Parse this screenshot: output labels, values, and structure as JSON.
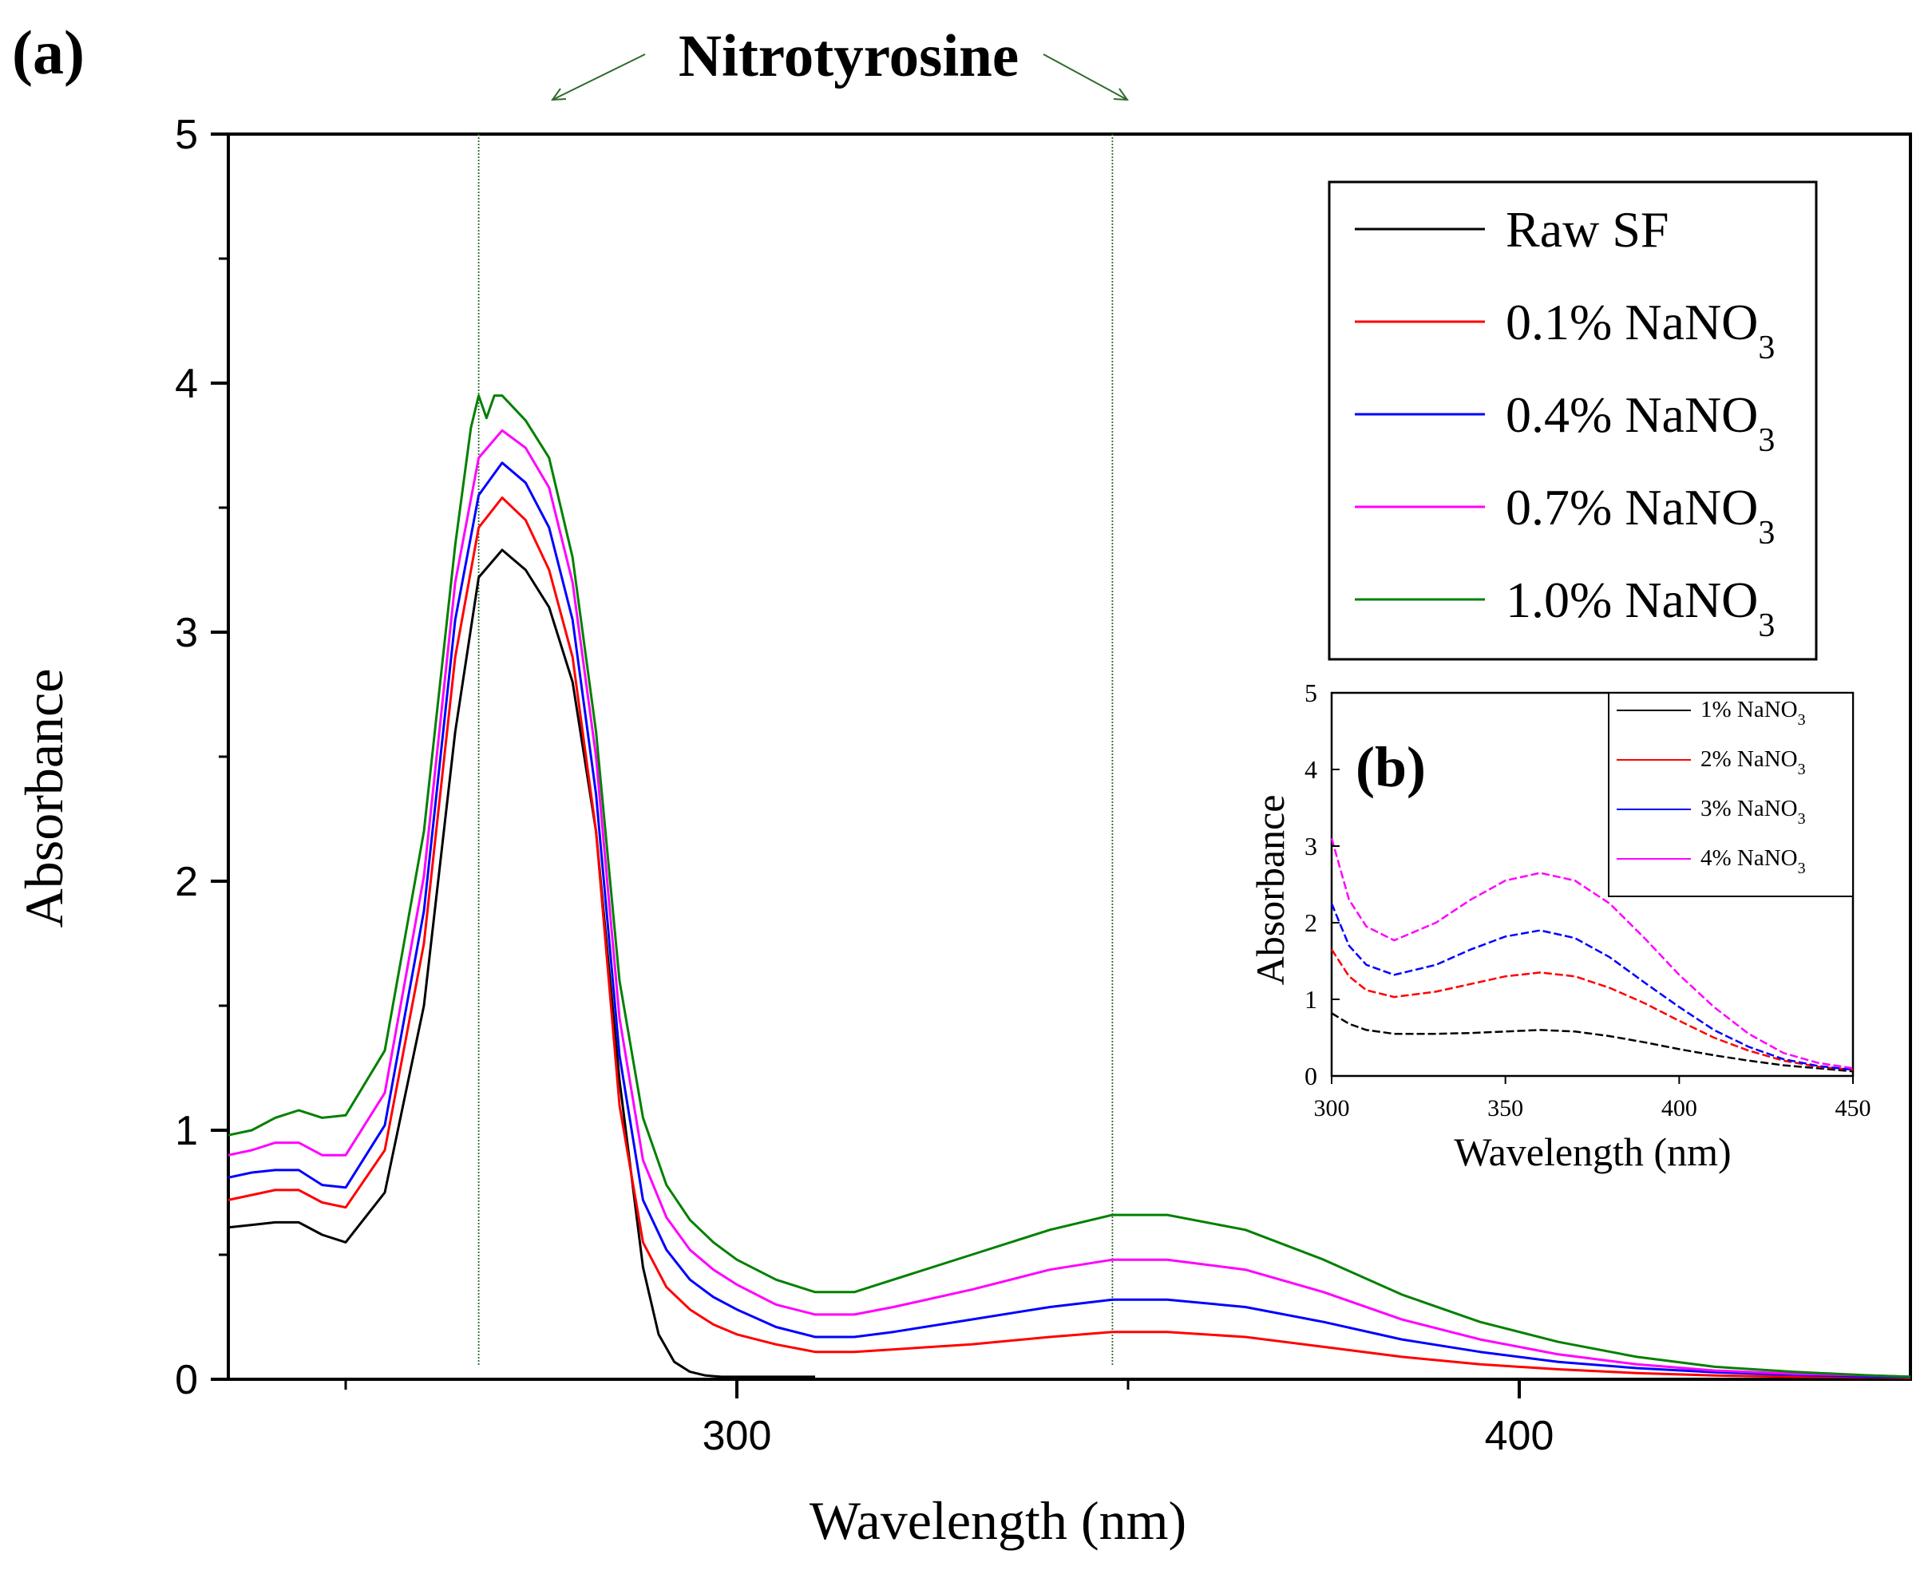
{
  "chart_data": [
    {
      "id": "a",
      "panel_label": "(a)",
      "type": "line",
      "annotation": "Nitrotyrosine",
      "reference_lines_x": [
        267,
        348
      ],
      "xlabel": "Wavelength (nm)",
      "ylabel": "Absorbance",
      "xlim": [
        235,
        450
      ],
      "ylim": [
        0,
        5
      ],
      "x_major_ticks": [
        300,
        400
      ],
      "x_minor_ticks": [
        250,
        350
      ],
      "y_major_ticks": [
        0,
        1,
        2,
        3,
        4,
        5
      ],
      "legend_position": "top-right",
      "series": [
        {
          "name": "Raw SF",
          "label_main": "Raw SF",
          "label_sub": "",
          "color": "#000000",
          "x": [
            235,
            238,
            241,
            244,
            247,
            250,
            255,
            260,
            264,
            267,
            270,
            273,
            276,
            279,
            282,
            285,
            288,
            290,
            292,
            294,
            296,
            298,
            300,
            305,
            310
          ],
          "y": [
            0.61,
            0.62,
            0.63,
            0.63,
            0.58,
            0.55,
            0.75,
            1.5,
            2.6,
            3.22,
            3.33,
            3.25,
            3.1,
            2.8,
            2.2,
            1.2,
            0.45,
            0.18,
            0.07,
            0.03,
            0.015,
            0.01,
            0.01,
            0.01,
            0.01
          ]
        },
        {
          "name": "0.1% NaNO3",
          "label_main": "0.1% NaNO",
          "label_sub": "3",
          "color": "#ff0000",
          "x": [
            235,
            238,
            241,
            244,
            247,
            250,
            255,
            260,
            264,
            267,
            270,
            273,
            276,
            279,
            282,
            285,
            288,
            291,
            294,
            297,
            300,
            305,
            310,
            315,
            320,
            330,
            340,
            348,
            355,
            365,
            375,
            385,
            395,
            405,
            415,
            425,
            435,
            445,
            450
          ],
          "y": [
            0.72,
            0.74,
            0.76,
            0.76,
            0.71,
            0.69,
            0.92,
            1.75,
            2.9,
            3.42,
            3.54,
            3.45,
            3.25,
            2.9,
            2.2,
            1.1,
            0.55,
            0.37,
            0.28,
            0.22,
            0.18,
            0.14,
            0.11,
            0.11,
            0.12,
            0.14,
            0.17,
            0.19,
            0.19,
            0.17,
            0.13,
            0.09,
            0.06,
            0.04,
            0.025,
            0.015,
            0.01,
            0.008,
            0.005
          ]
        },
        {
          "name": "0.4% NaNO3",
          "label_main": "0.4% NaNO",
          "label_sub": "3",
          "color": "#0000ff",
          "x": [
            235,
            238,
            241,
            244,
            247,
            250,
            255,
            260,
            264,
            267,
            270,
            273,
            276,
            279,
            282,
            285,
            288,
            291,
            294,
            297,
            300,
            305,
            310,
            315,
            320,
            330,
            340,
            348,
            355,
            365,
            375,
            385,
            395,
            405,
            415,
            425,
            435,
            445,
            450
          ],
          "y": [
            0.81,
            0.83,
            0.84,
            0.84,
            0.78,
            0.77,
            1.02,
            1.88,
            3.05,
            3.55,
            3.68,
            3.6,
            3.42,
            3.05,
            2.35,
            1.3,
            0.72,
            0.52,
            0.4,
            0.33,
            0.28,
            0.21,
            0.17,
            0.17,
            0.19,
            0.24,
            0.29,
            0.32,
            0.32,
            0.29,
            0.23,
            0.16,
            0.11,
            0.07,
            0.045,
            0.028,
            0.018,
            0.01,
            0.008
          ]
        },
        {
          "name": "0.7% NaNO3",
          "label_main": "0.7% NaNO",
          "label_sub": "3",
          "color": "#ff00ff",
          "x": [
            235,
            238,
            241,
            244,
            247,
            250,
            255,
            260,
            264,
            267,
            270,
            273,
            276,
            279,
            282,
            285,
            288,
            291,
            294,
            297,
            300,
            305,
            310,
            315,
            320,
            330,
            340,
            348,
            355,
            365,
            375,
            385,
            395,
            405,
            415,
            425,
            435,
            445,
            450
          ],
          "y": [
            0.9,
            0.92,
            0.95,
            0.95,
            0.9,
            0.9,
            1.15,
            2.02,
            3.2,
            3.7,
            3.81,
            3.74,
            3.58,
            3.2,
            2.5,
            1.45,
            0.88,
            0.65,
            0.52,
            0.44,
            0.38,
            0.3,
            0.26,
            0.26,
            0.29,
            0.36,
            0.44,
            0.48,
            0.48,
            0.44,
            0.35,
            0.24,
            0.16,
            0.1,
            0.06,
            0.035,
            0.022,
            0.015,
            0.01
          ]
        },
        {
          "name": "1.0% NaNO3",
          "label_main": "1.0% NaNO",
          "label_sub": "3",
          "color": "#008000",
          "x": [
            235,
            238,
            241,
            244,
            247,
            250,
            255,
            260,
            264,
            266,
            267,
            268,
            269,
            270,
            273,
            276,
            279,
            282,
            285,
            288,
            291,
            294,
            297,
            300,
            305,
            310,
            315,
            320,
            330,
            340,
            348,
            355,
            365,
            375,
            385,
            395,
            405,
            415,
            425,
            435,
            445,
            450
          ],
          "y": [
            0.98,
            1.0,
            1.05,
            1.08,
            1.05,
            1.06,
            1.32,
            2.2,
            3.35,
            3.82,
            3.95,
            3.86,
            3.95,
            3.95,
            3.85,
            3.7,
            3.3,
            2.6,
            1.6,
            1.05,
            0.78,
            0.64,
            0.55,
            0.48,
            0.4,
            0.35,
            0.35,
            0.4,
            0.5,
            0.6,
            0.66,
            0.66,
            0.6,
            0.48,
            0.34,
            0.23,
            0.15,
            0.09,
            0.05,
            0.03,
            0.015,
            0.01
          ]
        }
      ]
    },
    {
      "id": "b",
      "panel_label": "(b)",
      "type": "line",
      "xlabel": "Wavelength (nm)",
      "ylabel": "Absorbance",
      "xlim": [
        300,
        450
      ],
      "ylim": [
        0,
        5
      ],
      "x_major_ticks": [
        300,
        350,
        400,
        450
      ],
      "y_major_ticks": [
        0,
        1,
        2,
        3,
        4,
        5
      ],
      "legend_position": "top-right",
      "series": [
        {
          "name": "1% NaNO3",
          "label_main": "1% NaNO",
          "label_sub": "3",
          "color": "#000000",
          "dash": "dashed",
          "x": [
            300,
            305,
            310,
            318,
            330,
            340,
            350,
            360,
            370,
            380,
            390,
            400,
            410,
            420,
            430,
            440,
            450
          ],
          "y": [
            0.82,
            0.68,
            0.6,
            0.55,
            0.55,
            0.56,
            0.58,
            0.6,
            0.58,
            0.52,
            0.44,
            0.35,
            0.27,
            0.2,
            0.14,
            0.1,
            0.06
          ]
        },
        {
          "name": "2% NaNO3",
          "label_main": "2% NaNO",
          "label_sub": "3",
          "color": "#ff0000",
          "dash": "dashed",
          "x": [
            300,
            305,
            310,
            318,
            330,
            340,
            350,
            360,
            370,
            380,
            390,
            400,
            410,
            420,
            430,
            440,
            450
          ],
          "y": [
            1.65,
            1.3,
            1.12,
            1.03,
            1.1,
            1.2,
            1.3,
            1.35,
            1.3,
            1.15,
            0.95,
            0.72,
            0.5,
            0.33,
            0.2,
            0.12,
            0.08
          ]
        },
        {
          "name": "3% NaNO3",
          "label_main": "3% NaNO",
          "label_sub": "3",
          "color": "#0000ff",
          "dash": "dashed",
          "x": [
            300,
            305,
            310,
            318,
            330,
            340,
            350,
            360,
            370,
            380,
            390,
            400,
            410,
            420,
            430,
            440,
            450
          ],
          "y": [
            2.25,
            1.7,
            1.45,
            1.32,
            1.45,
            1.65,
            1.82,
            1.9,
            1.8,
            1.55,
            1.22,
            0.9,
            0.6,
            0.38,
            0.22,
            0.13,
            0.08
          ]
        },
        {
          "name": "4% NaNO3",
          "label_main": "4% NaNO",
          "label_sub": "3",
          "color": "#ff00ff",
          "dash": "dashed",
          "x": [
            300,
            305,
            310,
            318,
            330,
            340,
            350,
            360,
            370,
            380,
            390,
            400,
            410,
            420,
            430,
            440,
            450
          ],
          "y": [
            3.1,
            2.3,
            1.95,
            1.77,
            2.0,
            2.3,
            2.55,
            2.65,
            2.55,
            2.25,
            1.8,
            1.32,
            0.9,
            0.55,
            0.3,
            0.17,
            0.1
          ]
        }
      ]
    }
  ]
}
